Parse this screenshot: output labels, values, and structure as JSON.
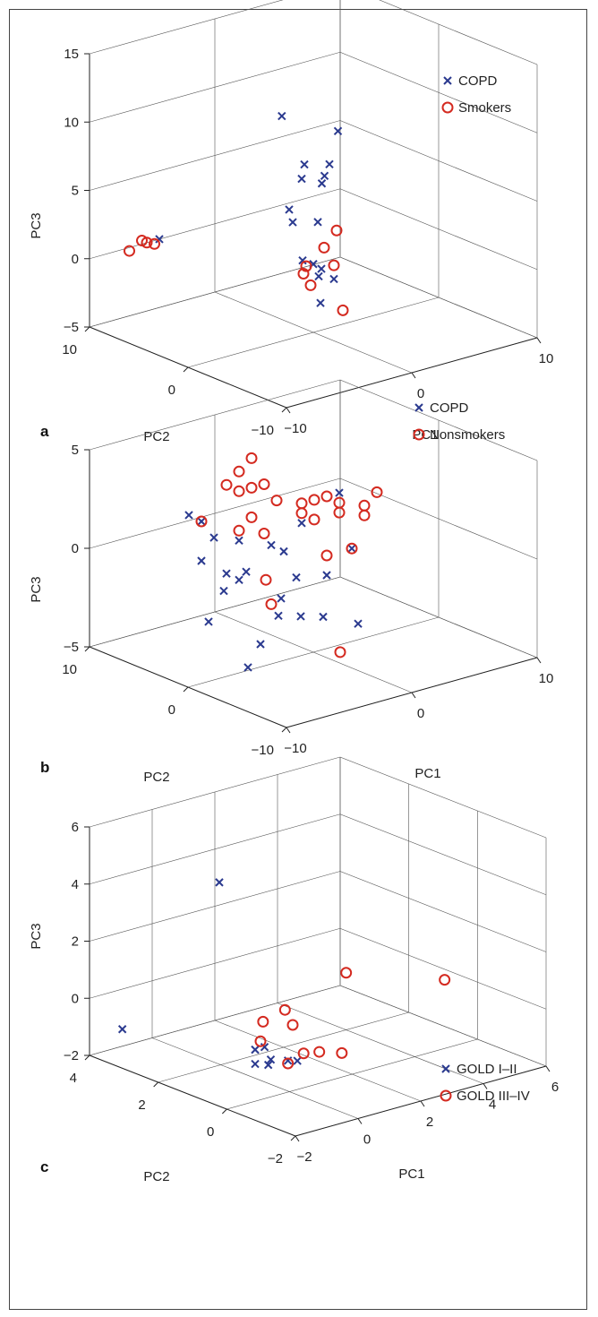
{
  "colors": {
    "cross": "#2b3a8f",
    "circle": "#d42a20",
    "grid": "#555555"
  },
  "chart_data": [
    {
      "type": "scatter",
      "panel_label": "a",
      "xlabel": "PC1",
      "ylabel": "PC2",
      "zlabel": "PC3",
      "xticks": [
        "−10",
        "0",
        "10"
      ],
      "yticks": [
        "−10",
        "0",
        "10"
      ],
      "zticks": [
        "−5",
        "0",
        "5",
        "10",
        "15"
      ],
      "xlim": [
        -10,
        10
      ],
      "ylim": [
        -10,
        10
      ],
      "zlim": [
        -5,
        15
      ],
      "legend": [
        "COPD",
        "Smokers"
      ],
      "series": [
        {
          "name": "COPD",
          "marker": "x",
          "points": [
            [
              2.2,
              6,
              8.5
            ],
            [
              3,
              5,
              4
            ],
            [
              4,
              6,
              4.5
            ],
            [
              5.5,
              4.5,
              7
            ],
            [
              6,
              6,
              4
            ],
            [
              6,
              6.5,
              3
            ],
            [
              5,
              5.5,
              3
            ],
            [
              3.5,
              4,
              1
            ],
            [
              -6,
              8,
              1
            ],
            [
              1.5,
              4,
              1.5
            ],
            [
              2,
              5,
              2
            ],
            [
              1.5,
              3,
              -1
            ],
            [
              3,
              3,
              -2
            ],
            [
              2,
              2,
              -2
            ],
            [
              4,
              3,
              -3
            ],
            [
              -1,
              -2,
              -2
            ],
            [
              0,
              0,
              0
            ]
          ]
        },
        {
          "name": "Smokers",
          "marker": "o",
          "points": [
            [
              -8,
              8.5,
              0.5
            ],
            [
              -7,
              8,
              1
            ],
            [
              -7,
              8.5,
              1
            ],
            [
              -6,
              8.5,
              0.5
            ],
            [
              -1,
              -1,
              -1
            ],
            [
              0,
              1,
              -1
            ],
            [
              0,
              -3,
              -2.5
            ],
            [
              1,
              2,
              -1
            ],
            [
              4,
              4,
              -1
            ],
            [
              5,
              4,
              0
            ],
            [
              4,
              3,
              -2
            ]
          ]
        }
      ]
    },
    {
      "type": "scatter",
      "panel_label": "b",
      "xlabel": "PC1",
      "ylabel": "PC2",
      "zlabel": "PC3",
      "xticks": [
        "−10",
        "0",
        "10"
      ],
      "yticks": [
        "−10",
        "0",
        "10"
      ],
      "zticks": [
        "−5",
        "0",
        "5"
      ],
      "xlim": [
        -10,
        10
      ],
      "ylim": [
        -10,
        10
      ],
      "zlim": [
        -5,
        5
      ],
      "legend": [
        "COPD",
        "Nonsmokers"
      ],
      "series": [
        {
          "name": "COPD",
          "marker": "x",
          "points": [
            [
              -6,
              5,
              2
            ],
            [
              -5,
              5,
              1.5
            ],
            [
              -4,
              5,
              0.5
            ],
            [
              -5,
              5,
              -0.5
            ],
            [
              -3,
              5,
              -1.5
            ],
            [
              -2,
              5,
              -2
            ],
            [
              -4,
              4,
              -2
            ],
            [
              -6,
              3,
              -3
            ],
            [
              -3,
              3,
              -1
            ],
            [
              -1,
              3,
              0
            ],
            [
              0,
              3,
              -0.5
            ],
            [
              1,
              3,
              -2
            ],
            [
              -1,
              2,
              -2.5
            ],
            [
              -2,
              1,
              -3
            ],
            [
              -1,
              0,
              -3
            ],
            [
              0,
              -1,
              -3
            ],
            [
              2,
              -2,
              -3.5
            ],
            [
              -2,
              5,
              0
            ],
            [
              3,
              5,
              0
            ],
            [
              7,
              5,
              -2
            ],
            [
              5,
              5,
              -3
            ],
            [
              6,
              5,
              1
            ],
            [
              -6,
              -1,
              -4.5
            ],
            [
              -5,
              -1,
              -3.5
            ]
          ]
        },
        {
          "name": "Nonsmokers",
          "marker": "o",
          "points": [
            [
              -3,
              5,
              3
            ],
            [
              -2,
              5,
              3.5
            ],
            [
              -1,
              5,
              4
            ],
            [
              -2,
              5,
              2.5
            ],
            [
              -1,
              5,
              2.5
            ],
            [
              0,
              5,
              2.5
            ],
            [
              -5,
              5,
              1.5
            ],
            [
              -2,
              5,
              0.5
            ],
            [
              -1,
              5,
              1
            ],
            [
              0,
              5,
              0
            ],
            [
              1,
              5,
              1.5
            ],
            [
              3,
              5,
              0.5
            ],
            [
              3,
              5,
              1
            ],
            [
              4,
              5,
              1
            ],
            [
              5,
              5,
              1
            ],
            [
              4,
              5,
              0
            ],
            [
              6,
              5,
              0.5
            ],
            [
              6,
              5,
              0
            ],
            [
              8,
              5,
              -0.5
            ],
            [
              8,
              5,
              0
            ],
            [
              9,
              5,
              0.5
            ],
            [
              7,
              5,
              -2
            ],
            [
              5,
              5,
              -2
            ],
            [
              -1,
              3,
              -3
            ],
            [
              -3,
              1,
              -1
            ],
            [
              -1,
              -4,
              -4
            ]
          ]
        }
      ]
    },
    {
      "type": "scatter",
      "panel_label": "c",
      "xlabel": "PC1",
      "ylabel": "PC2",
      "zlabel": "PC3",
      "xticks": [
        "−2",
        "0",
        "2",
        "4",
        "6"
      ],
      "yticks": [
        "−2",
        "0",
        "2",
        "4"
      ],
      "zticks": [
        "−2",
        "0",
        "2",
        "4",
        "6"
      ],
      "xlim": [
        -2,
        6
      ],
      "ylim": [
        -2,
        4
      ],
      "zlim": [
        -2,
        6
      ],
      "legend": [
        "GOLD I–II",
        "GOLD III–IV"
      ],
      "series": [
        {
          "name": "GOLD I–II",
          "marker": "x",
          "points": [
            [
              -1.5,
              3.5,
              -1
            ],
            [
              0.5,
              2.5,
              4
            ],
            [
              0,
              1,
              -1.5
            ],
            [
              0,
              1,
              -1
            ],
            [
              0.3,
              1,
              -1
            ],
            [
              0.5,
              1,
              -1.5
            ],
            [
              0.2,
              0.8,
              -1.5
            ],
            [
              0.5,
              0.5,
              -1.3
            ],
            [
              0.8,
              0.5,
              -1.4
            ]
          ]
        },
        {
          "name": "GOLD III–IV",
          "marker": "o",
          "points": [
            [
              4,
              2,
              0
            ],
            [
              5.5,
              0.5,
              0
            ],
            [
              0.8,
              1.5,
              -0.5
            ],
            [
              0.5,
              1.3,
              -1
            ],
            [
              1.2,
              1,
              -0.5
            ],
            [
              1.5,
              1.5,
              -0.3
            ],
            [
              1,
              0.5,
              -1.2
            ],
            [
              1.5,
              0.5,
              -1.3
            ],
            [
              2,
              0.3,
              -1.4
            ],
            [
              0.5,
              0.5,
              -1.4
            ]
          ]
        }
      ]
    }
  ]
}
